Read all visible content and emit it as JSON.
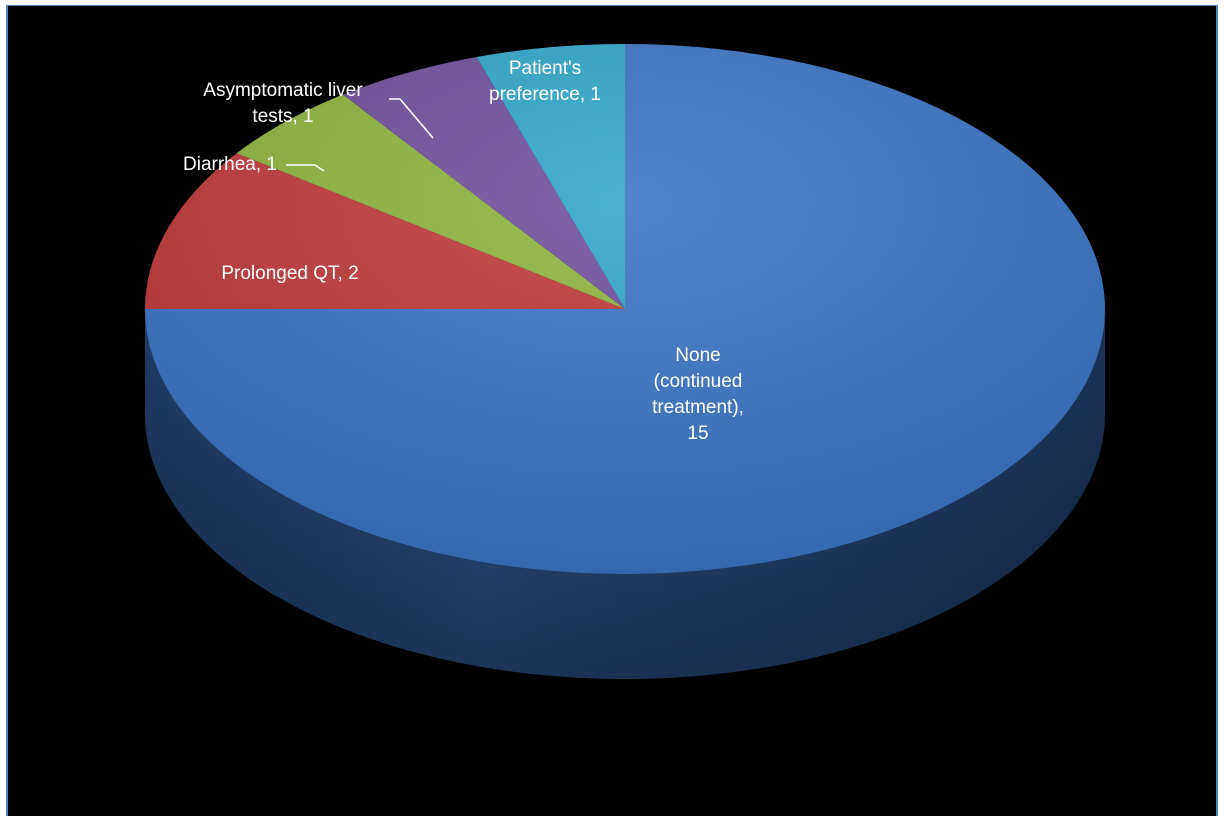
{
  "chart_data": {
    "type": "pie",
    "title": "",
    "slices": [
      {
        "label": "None (continued treatment)",
        "value": 15,
        "color": "#3a74c4"
      },
      {
        "label": "Prolonged QT",
        "value": 2,
        "color": "#c0393a"
      },
      {
        "label": "Diarrhea",
        "value": 1,
        "color": "#8fb33e"
      },
      {
        "label": "Asymptomatic liver tests",
        "value": 1,
        "color": "#6e4f9b"
      },
      {
        "label": "Patient's preference",
        "value": 1,
        "color": "#2fa6c8"
      }
    ],
    "data_labels": [
      {
        "lines": [
          "None",
          "(continued",
          "treatment),",
          "15"
        ]
      },
      {
        "lines": [
          "Prolonged QT, 2"
        ]
      },
      {
        "lines": [
          "Diarrhea, 1"
        ]
      },
      {
        "lines": [
          "Asymptomatic liver",
          "tests, 1"
        ]
      },
      {
        "lines": [
          "Patient's",
          "preference, 1"
        ]
      }
    ],
    "style": "3d",
    "legend": "none"
  }
}
